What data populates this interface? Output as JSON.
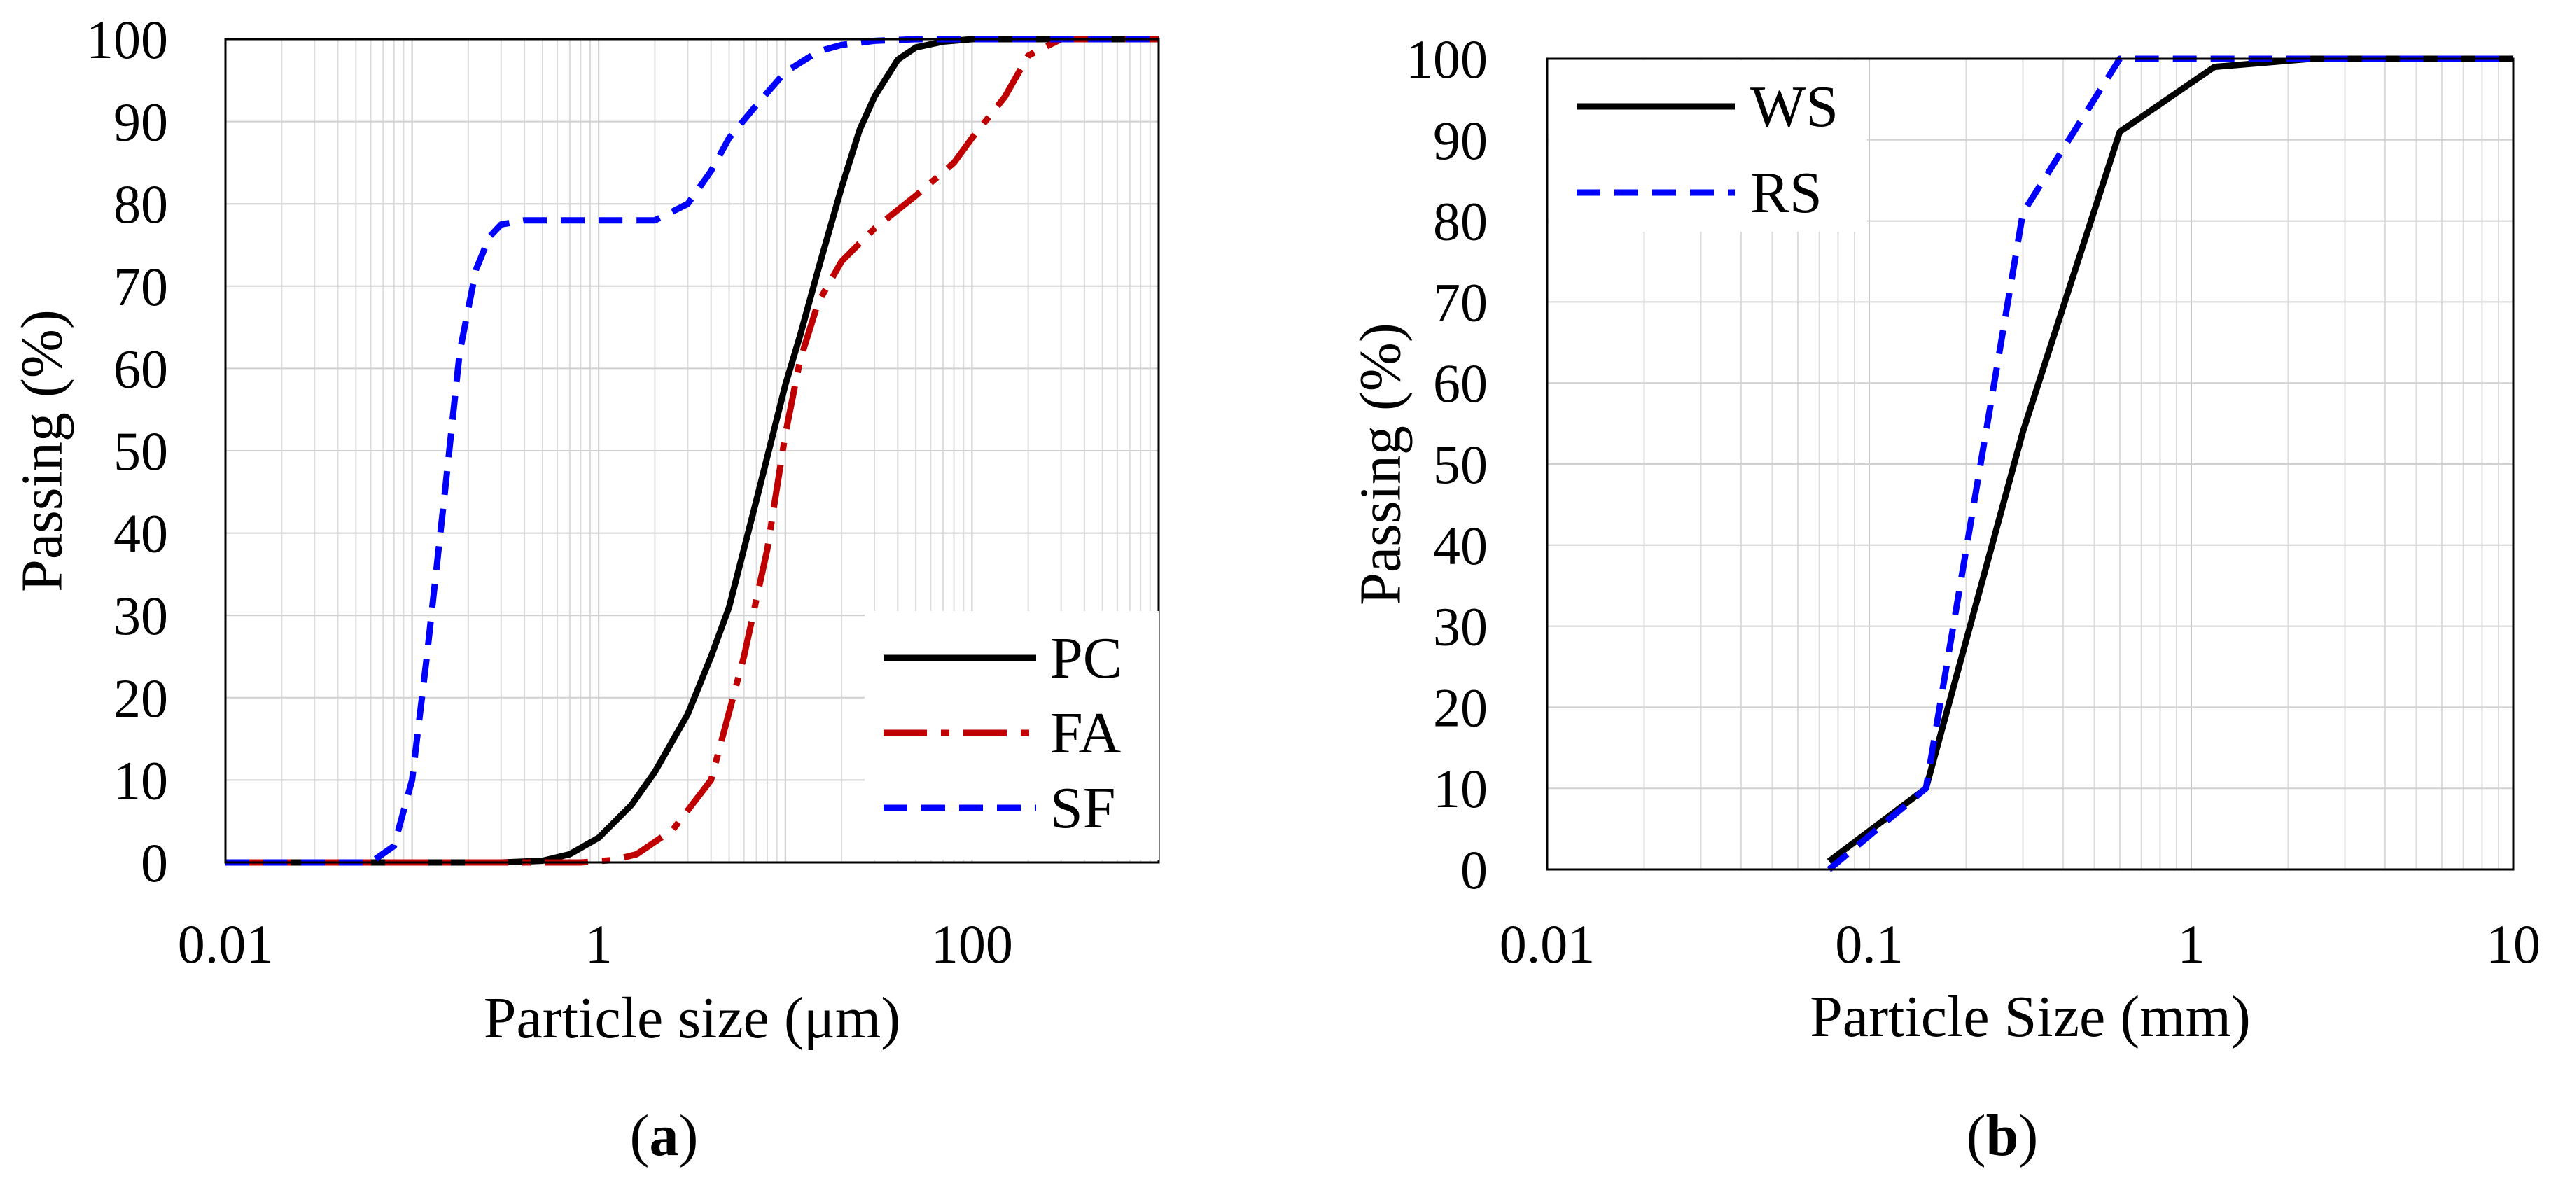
{
  "chart_data": [
    {
      "type": "line",
      "panel": "a",
      "caption": {
        "open": "(",
        "letter": "a",
        "close": ")"
      },
      "title": "",
      "xlabel": "Particle size (μm)",
      "ylabel": "Passing (%)",
      "xscale": "log",
      "xlim": [
        0.01,
        1000
      ],
      "ylim": [
        0,
        100
      ],
      "xticks": [
        0.01,
        1,
        100
      ],
      "xtick_labels": [
        "0.01",
        "1",
        "100"
      ],
      "yticks": [
        0,
        10,
        20,
        30,
        40,
        50,
        60,
        70,
        80,
        90,
        100
      ],
      "ytick_labels": [
        "0",
        "10",
        "20",
        "30",
        "40",
        "50",
        "60",
        "70",
        "80",
        "90",
        "100"
      ],
      "grid": true,
      "legend_position": "bottom-right",
      "series": [
        {
          "name": "PC",
          "color": "#000000",
          "dash": "solid",
          "x": [
            0.01,
            0.3,
            0.5,
            0.7,
            1,
            1.5,
            2,
            3,
            4,
            5,
            7,
            10,
            12,
            15,
            20,
            25,
            30,
            40,
            50,
            70,
            100,
            1000
          ],
          "y": [
            0,
            0,
            0.2,
            1,
            3,
            7,
            11,
            18,
            25,
            31,
            44,
            58,
            64,
            72,
            82,
            89,
            93,
            97.5,
            99,
            99.7,
            100,
            100
          ]
        },
        {
          "name": "FA",
          "color": "#C00000",
          "dash": "dashdot",
          "x": [
            0.01,
            0.8,
            1.2,
            1.6,
            2.5,
            4,
            6,
            8,
            10,
            12,
            15,
            20,
            30,
            50,
            80,
            100,
            150,
            200,
            300,
            1000
          ],
          "y": [
            0,
            0,
            0.3,
            1,
            4,
            10,
            25,
            38,
            52,
            61,
            68,
            73,
            77,
            81,
            85,
            88,
            93,
            98,
            100,
            100
          ]
        },
        {
          "name": "SF",
          "color": "#0000FF",
          "dash": "dash",
          "x": [
            0.01,
            0.06,
            0.08,
            0.1,
            0.12,
            0.15,
            0.18,
            0.22,
            0.26,
            0.3,
            0.4,
            0.5,
            0.7,
            1,
            2,
            3,
            4,
            5,
            7,
            10,
            15,
            20,
            30,
            50,
            100,
            1000
          ],
          "y": [
            0,
            0,
            2,
            10,
            25,
            45,
            62,
            72,
            76,
            77.5,
            78,
            78,
            78,
            78,
            78,
            80,
            84,
            88,
            92,
            96,
            98.5,
            99.3,
            99.8,
            100,
            100,
            100
          ]
        }
      ]
    },
    {
      "type": "line",
      "panel": "b",
      "caption": {
        "open": "(",
        "letter": "b",
        "close": ")"
      },
      "title": "",
      "xlabel": "Particle Size (mm)",
      "ylabel": "Passing (%)",
      "xscale": "log",
      "xlim": [
        0.01,
        10
      ],
      "ylim": [
        0,
        100
      ],
      "xticks": [
        0.01,
        0.1,
        1,
        10
      ],
      "xtick_labels": [
        "0.01",
        "0.1",
        "1",
        "10"
      ],
      "yticks": [
        0,
        10,
        20,
        30,
        40,
        50,
        60,
        70,
        80,
        90,
        100
      ],
      "ytick_labels": [
        "0",
        "10",
        "20",
        "30",
        "40",
        "50",
        "60",
        "70",
        "80",
        "90",
        "100"
      ],
      "grid": true,
      "legend_position": "top-left",
      "series": [
        {
          "name": "WS",
          "color": "#000000",
          "dash": "solid",
          "x": [
            0.075,
            0.15,
            0.3,
            0.6,
            1.18,
            2.36,
            4.75,
            10
          ],
          "y": [
            1,
            10,
            54,
            91,
            99,
            100,
            100,
            100
          ]
        },
        {
          "name": "RS",
          "color": "#0000FF",
          "dash": "dash",
          "x": [
            0.075,
            0.15,
            0.3,
            0.6,
            1.18,
            2.36,
            4.75,
            10
          ],
          "y": [
            0,
            10,
            81,
            100,
            100,
            100,
            100,
            100
          ]
        }
      ]
    }
  ]
}
